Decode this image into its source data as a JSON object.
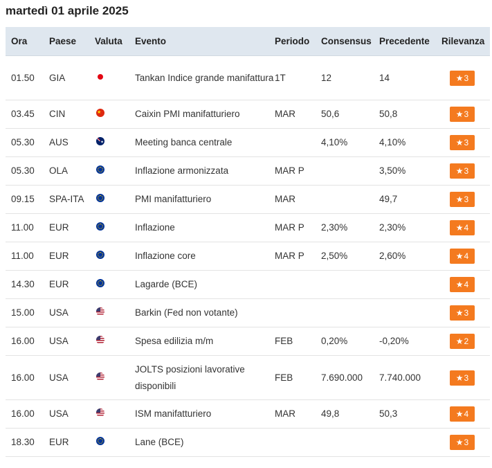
{
  "page": {
    "date_title": "martedì 01 aprile 2025",
    "accent_color": "#f47a1f",
    "header_bg": "#dfe7ef"
  },
  "table": {
    "headers": {
      "ora": "Ora",
      "paese": "Paese",
      "valuta": "Valuta",
      "evento": "Evento",
      "periodo": "Periodo",
      "consensus": "Consensus",
      "precedente": "Precedente",
      "rilevanza": "Rilevanza"
    },
    "rows": [
      {
        "ora": "01.50",
        "paese": "GIA",
        "flag": "jp",
        "flag_icon": "japan-flag-icon",
        "evento": "Tankan Indice grande manifattura",
        "periodo": "1T",
        "consensus": "12",
        "precedente": "14",
        "rilevanza": "3",
        "tall": true
      },
      {
        "ora": "03.45",
        "paese": "CIN",
        "flag": "cn",
        "flag_icon": "china-flag-icon",
        "evento": "Caixin PMI manifatturiero",
        "periodo": "MAR",
        "consensus": "50,6",
        "precedente": "50,8",
        "rilevanza": "3"
      },
      {
        "ora": "05.30",
        "paese": "AUS",
        "flag": "au",
        "flag_icon": "australia-flag-icon",
        "evento": "Meeting banca centrale",
        "periodo": "",
        "consensus": "4,10%",
        "precedente": "4,10%",
        "rilevanza": "3"
      },
      {
        "ora": "05.30",
        "paese": "OLA",
        "flag": "eu",
        "flag_icon": "eu-flag-icon",
        "evento": "Inflazione armonizzata",
        "periodo": "MAR P",
        "consensus": "",
        "precedente": "3,50%",
        "rilevanza": "3"
      },
      {
        "ora": "09.15",
        "paese": "SPA-ITA",
        "flag": "eu",
        "flag_icon": "eu-flag-icon",
        "evento": "PMI manifatturiero",
        "periodo": "MAR",
        "consensus": "",
        "precedente": "49,7",
        "rilevanza": "3"
      },
      {
        "ora": "11.00",
        "paese": "EUR",
        "flag": "eu",
        "flag_icon": "eu-flag-icon",
        "evento": "Inflazione",
        "periodo": "MAR P",
        "consensus": "2,30%",
        "precedente": "2,30%",
        "rilevanza": "4"
      },
      {
        "ora": "11.00",
        "paese": "EUR",
        "flag": "eu",
        "flag_icon": "eu-flag-icon",
        "evento": "Inflazione core",
        "periodo": "MAR P",
        "consensus": "2,50%",
        "precedente": "2,60%",
        "rilevanza": "4"
      },
      {
        "ora": "14.30",
        "paese": "EUR",
        "flag": "eu",
        "flag_icon": "eu-flag-icon",
        "evento": "Lagarde (BCE)",
        "periodo": "",
        "consensus": "",
        "precedente": "",
        "rilevanza": "4"
      },
      {
        "ora": "15.00",
        "paese": "USA",
        "flag": "us",
        "flag_icon": "usa-flag-icon",
        "evento": "Barkin (Fed non votante)",
        "periodo": "",
        "consensus": "",
        "precedente": "",
        "rilevanza": "3"
      },
      {
        "ora": "16.00",
        "paese": "USA",
        "flag": "us",
        "flag_icon": "usa-flag-icon",
        "evento": "Spesa edilizia m/m",
        "periodo": "FEB",
        "consensus": "0,20%",
        "precedente": "-0,20%",
        "rilevanza": "2"
      },
      {
        "ora": "16.00",
        "paese": "USA",
        "flag": "us",
        "flag_icon": "usa-flag-icon",
        "evento": "JOLTS posizioni lavorative disponibili",
        "periodo": "FEB",
        "consensus": "7.690.000",
        "precedente": "7.740.000",
        "rilevanza": "3",
        "tall": true
      },
      {
        "ora": "16.00",
        "paese": "USA",
        "flag": "us",
        "flag_icon": "usa-flag-icon",
        "evento": "ISM manifatturiero",
        "periodo": "MAR",
        "consensus": "49,8",
        "precedente": "50,3",
        "rilevanza": "4"
      },
      {
        "ora": "18.30",
        "paese": "EUR",
        "flag": "eu",
        "flag_icon": "eu-flag-icon",
        "evento": "Lane (BCE)",
        "periodo": "",
        "consensus": "",
        "precedente": "",
        "rilevanza": "3"
      }
    ]
  }
}
